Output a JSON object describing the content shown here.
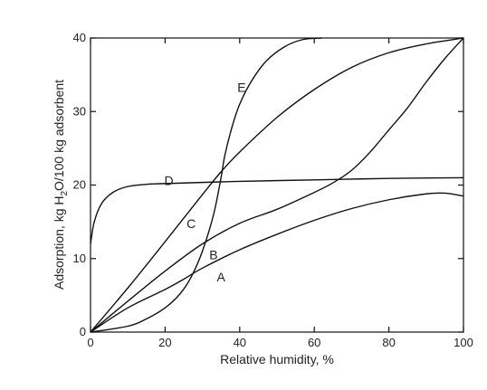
{
  "chart_data": {
    "type": "line",
    "title": "",
    "xlabel": "Relative humidity, %",
    "ylabel_parts": [
      "Adsorption, kg H",
      "2",
      "O/100 kg adsorbent"
    ],
    "xlim": [
      0,
      100
    ],
    "ylim": [
      0,
      40
    ],
    "xticks": [
      0,
      20,
      40,
      60,
      80,
      100
    ],
    "yticks": [
      0,
      10,
      20,
      30,
      40
    ],
    "grid": false,
    "legend": "none",
    "series": [
      {
        "name": "A",
        "label_at": [
          35,
          7.5
        ],
        "points": [
          [
            0,
            0
          ],
          [
            10,
            3.3
          ],
          [
            20,
            5.8
          ],
          [
            25,
            7.2
          ],
          [
            30,
            8.7
          ],
          [
            40,
            11.2
          ],
          [
            50,
            13.3
          ],
          [
            60,
            15.2
          ],
          [
            70,
            16.8
          ],
          [
            80,
            18
          ],
          [
            90,
            18.8
          ],
          [
            95,
            18.9
          ],
          [
            100,
            18.5
          ]
        ]
      },
      {
        "name": "B",
        "label_at": [
          33,
          10.5
        ],
        "points": [
          [
            0,
            0
          ],
          [
            10,
            4.2
          ],
          [
            20,
            8.3
          ],
          [
            30,
            12
          ],
          [
            40,
            14.8
          ],
          [
            50,
            16.7
          ],
          [
            60,
            19
          ],
          [
            65,
            20.3
          ],
          [
            70,
            22
          ],
          [
            75,
            24.5
          ],
          [
            80,
            27.5
          ],
          [
            85,
            30.5
          ],
          [
            90,
            34
          ],
          [
            95,
            37.2
          ],
          [
            100,
            40
          ]
        ]
      },
      {
        "name": "C",
        "label_at": [
          27,
          14.8
        ],
        "points": [
          [
            0,
            0
          ],
          [
            10,
            6
          ],
          [
            20,
            12.3
          ],
          [
            30,
            18.7
          ],
          [
            35,
            21.8
          ],
          [
            40,
            24.5
          ],
          [
            50,
            29.2
          ],
          [
            60,
            33
          ],
          [
            70,
            36
          ],
          [
            80,
            38
          ],
          [
            90,
            39.2
          ],
          [
            100,
            40
          ]
        ]
      },
      {
        "name": "D",
        "label_at": [
          21,
          20.6
        ],
        "points": [
          [
            0,
            12
          ],
          [
            1,
            15
          ],
          [
            3,
            17.5
          ],
          [
            6,
            19
          ],
          [
            10,
            19.8
          ],
          [
            15,
            20.1
          ],
          [
            20,
            20.2
          ],
          [
            40,
            20.5
          ],
          [
            60,
            20.7
          ],
          [
            80,
            20.9
          ],
          [
            100,
            21
          ]
        ]
      },
      {
        "name": "E",
        "label_at": [
          40.5,
          33.3
        ],
        "points": [
          [
            0,
            0
          ],
          [
            10,
            0.8
          ],
          [
            15,
            1.8
          ],
          [
            20,
            3.3
          ],
          [
            24,
            5.2
          ],
          [
            27,
            7.5
          ],
          [
            30,
            11
          ],
          [
            33,
            16
          ],
          [
            35,
            21
          ],
          [
            36,
            24
          ],
          [
            38,
            28
          ],
          [
            40,
            31
          ],
          [
            43,
            34
          ],
          [
            47,
            36.8
          ],
          [
            52,
            38.8
          ],
          [
            57,
            39.8
          ],
          [
            62,
            40
          ]
        ]
      }
    ]
  }
}
